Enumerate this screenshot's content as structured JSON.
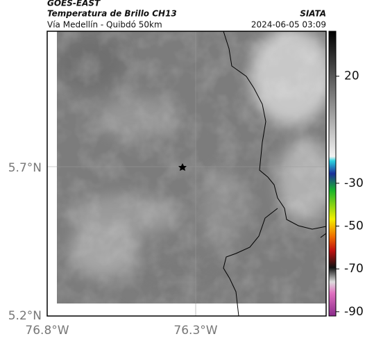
{
  "header": {
    "satellite": "GOES-EAST",
    "title": "Temperatura de Brillo CH13",
    "source": "SIATA",
    "subtitle": "Vía Medellín - Quibdó 50km",
    "datetime": "2024-06-05 03:09"
  },
  "map": {
    "lat_ticks": [
      "5.7°N",
      "5.2°N"
    ],
    "lon_ticks": [
      "76.8°W",
      "76.3°W"
    ]
  },
  "colorbar": {
    "lim": [
      41,
      -92
    ],
    "ticks": [
      20,
      -30,
      -50,
      -70,
      -90
    ]
  }
}
